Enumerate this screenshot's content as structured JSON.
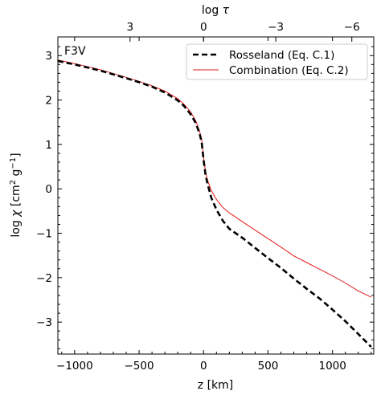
{
  "chart_data": {
    "type": "line",
    "panel_label": "F3V",
    "xlabel": "z [km]",
    "ylabel_parts": {
      "pre": "log ",
      "sym": "χ",
      "bracket_open": " [cm",
      "sup1": "2",
      "mid": " g",
      "sup2": "−1",
      "bracket_close": "]"
    },
    "top_label_parts": {
      "pre": "log ",
      "sym": "τ"
    },
    "xlim": [
      -1130,
      1320
    ],
    "ylim": [
      -3.72,
      3.42
    ],
    "x_ticks": [
      -1000,
      -500,
      0,
      500,
      1000
    ],
    "x_tick_labels": [
      "−1000",
      "−500",
      "0",
      "500",
      "1000"
    ],
    "y_ticks": [
      3,
      2,
      1,
      0,
      -1,
      -2,
      -3
    ],
    "y_tick_labels": [
      "3",
      "2",
      "1",
      "0",
      "−1",
      "−2",
      "−3"
    ],
    "top_ticks": [
      {
        "label": "3",
        "z": -570
      },
      {
        "label": "0",
        "z": 0
      },
      {
        "label": "−3",
        "z": 560
      },
      {
        "label": "−6",
        "z": 1150
      }
    ],
    "legend_position": "upper right",
    "series": [
      {
        "name": "Rosseland (Eq. C.1)",
        "color": "#000000",
        "style": "dashed",
        "x": [
          -1130,
          -1000,
          -800,
          -600,
          -500,
          -400,
          -300,
          -200,
          -150,
          -100,
          -60,
          -30,
          -15,
          0,
          15,
          30,
          60,
          100,
          150,
          200,
          300,
          400,
          500,
          600,
          700,
          800,
          900,
          1000,
          1100,
          1200,
          1300
        ],
        "y": [
          2.88,
          2.8,
          2.66,
          2.49,
          2.4,
          2.3,
          2.17,
          1.99,
          1.86,
          1.68,
          1.48,
          1.24,
          1.05,
          0.65,
          0.32,
          0.12,
          -0.2,
          -0.47,
          -0.72,
          -0.9,
          -1.1,
          -1.33,
          -1.56,
          -1.78,
          -2.02,
          -2.25,
          -2.47,
          -2.72,
          -2.98,
          -3.27,
          -3.56
        ]
      },
      {
        "name": "Combination (Eq. C.2)",
        "color": "#e41a1c",
        "style": "solid",
        "x": [
          -1130,
          -1000,
          -800,
          -600,
          -500,
          -400,
          -300,
          -200,
          -150,
          -100,
          -60,
          -30,
          -15,
          0,
          15,
          30,
          60,
          100,
          150,
          200,
          300,
          400,
          500,
          600,
          700,
          800,
          900,
          1000,
          1100,
          1200,
          1300
        ],
        "y": [
          2.9,
          2.82,
          2.68,
          2.51,
          2.42,
          2.32,
          2.2,
          2.03,
          1.9,
          1.73,
          1.53,
          1.29,
          1.1,
          0.7,
          0.38,
          0.2,
          -0.04,
          -0.24,
          -0.42,
          -0.54,
          -0.74,
          -0.93,
          -1.12,
          -1.31,
          -1.51,
          -1.66,
          -1.81,
          -1.96,
          -2.12,
          -2.3,
          -2.44
        ]
      }
    ]
  }
}
